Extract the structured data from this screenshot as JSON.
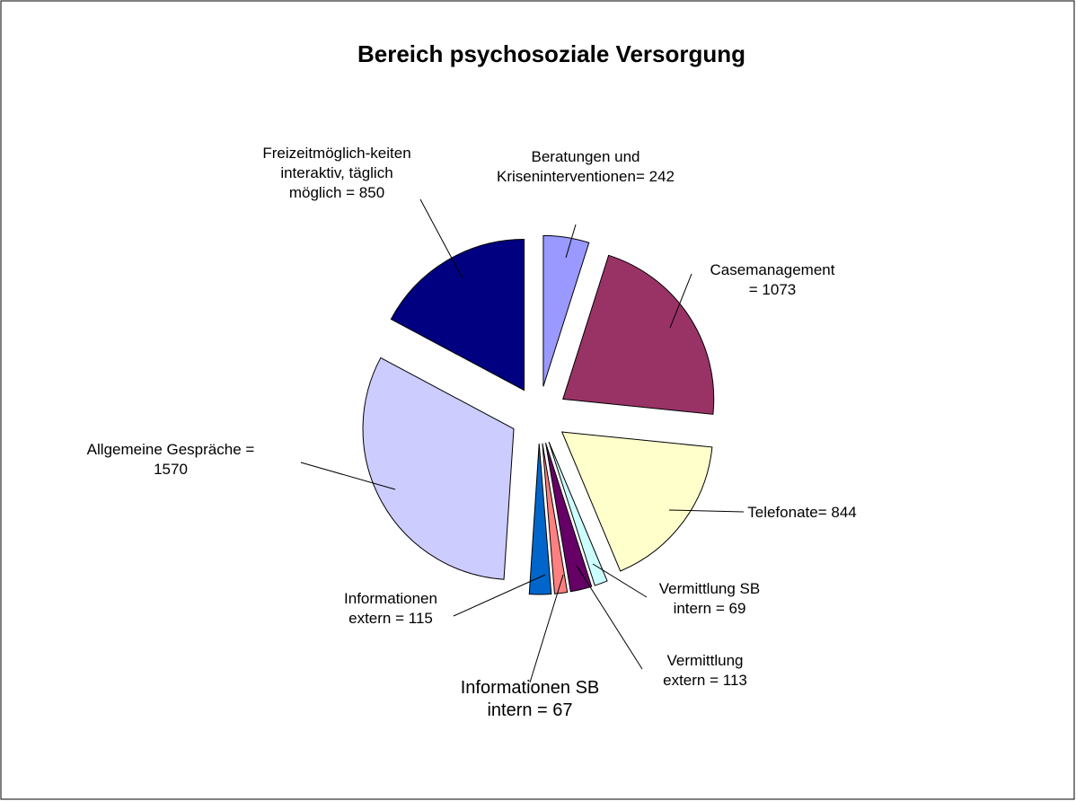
{
  "chart_data": {
    "type": "pie",
    "title": "Bereich psychosoziale Versorgung",
    "categories": [
      "Beratungen und Kriseninterventionen=",
      "Casemanagement =",
      "Telefonate=",
      "Vermittlung SB intern =",
      "Vermittlung extern =",
      "Informationen SB intern =",
      "Informationen extern =",
      "Allgemeine Gespräche =",
      "Freizeitmöglich-keiten interaktiv, täglich möglich ="
    ],
    "values": [
      242,
      1073,
      844,
      69,
      113,
      67,
      115,
      1570,
      850
    ],
    "colors": [
      "#9999ff",
      "#993366",
      "#ffffcc",
      "#ccffff",
      "#660066",
      "#ff8080",
      "#0066cc",
      "#ccccff",
      "#000080"
    ]
  }
}
